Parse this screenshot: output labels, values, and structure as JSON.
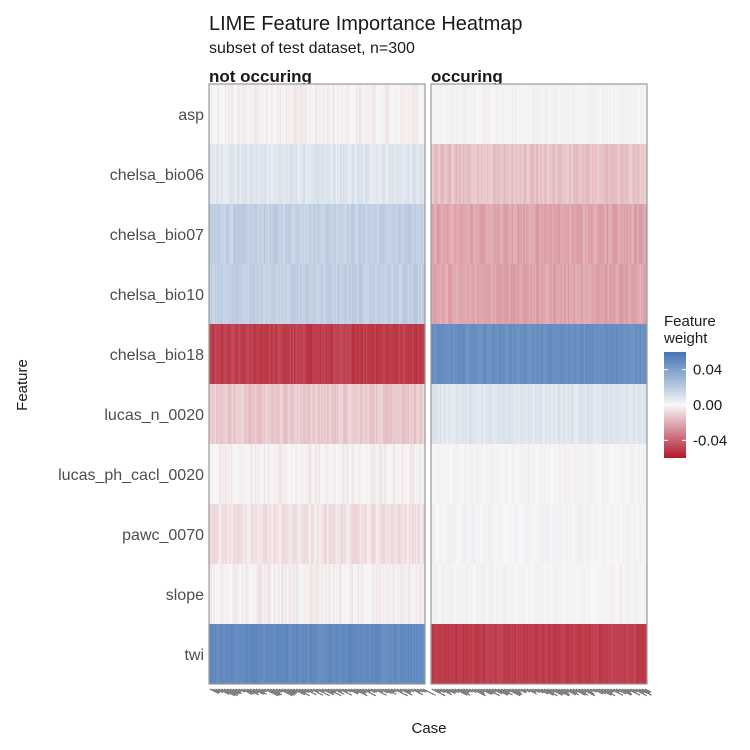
{
  "chart_data": {
    "type": "heatmap",
    "title": "LIME Feature Importance Heatmap",
    "subtitle": "subset of test dataset, n=300",
    "xlabel": "Case",
    "ylabel": "Feature",
    "panels": [
      "not occuring",
      "occuring"
    ],
    "features": [
      "asp",
      "chelsa_bio06",
      "chelsa_bio07",
      "chelsa_bio10",
      "chelsa_bio18",
      "lucas_n_0020",
      "lucas_ph_cacl_0020",
      "pawc_0070",
      "slope",
      "twi"
    ],
    "weights_approx": {
      "not occuring": [
        -0.002,
        0.008,
        0.018,
        0.018,
        -0.05,
        -0.012,
        -0.002,
        -0.006,
        -0.002,
        0.05
      ],
      "occuring": [
        0.0,
        -0.014,
        -0.022,
        -0.022,
        0.048,
        0.008,
        0.0,
        0.001,
        0.0,
        -0.05
      ]
    },
    "weight_variation": {
      "not occuring": [
        0.004,
        0.004,
        0.004,
        0.004,
        0.004,
        0.004,
        0.004,
        0.004,
        0.004,
        0.003
      ],
      "occuring": [
        0.003,
        0.004,
        0.004,
        0.004,
        0.003,
        0.003,
        0.003,
        0.003,
        0.003,
        0.003
      ]
    },
    "cases_per_panel": 150,
    "legend": {
      "title": "Feature weight",
      "title_lines": [
        "Feature",
        "weight"
      ],
      "ticks": [
        0.04,
        0.0,
        -0.04
      ],
      "tick_labels": [
        "0.04",
        "0.00",
        "-0.04"
      ],
      "range": [
        -0.06,
        0.06
      ],
      "placement": "right",
      "colors": {
        "high": "#4575b4",
        "mid": "#f7f7f7",
        "low": "#b2182b"
      }
    },
    "grid": false
  }
}
